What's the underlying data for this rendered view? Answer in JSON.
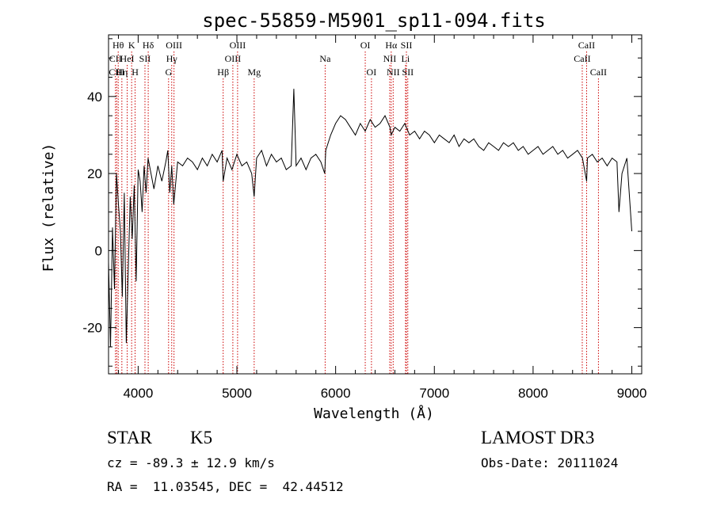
{
  "chart_data": {
    "type": "line",
    "title": "spec-55859-M5901_sp11-094.fits",
    "xlabel": "Wavelength (Å)",
    "ylabel": "Flux (relative)",
    "xlim": [
      3700,
      9100
    ],
    "ylim": [
      -32,
      56
    ],
    "xticks": [
      4000,
      5000,
      6000,
      7000,
      8000,
      9000
    ],
    "xtick_labels": [
      "4000",
      "5000",
      "6000",
      "7000",
      "8000",
      "9000"
    ],
    "yticks": [
      -20,
      0,
      20,
      40
    ],
    "ytick_labels": [
      "-20",
      "0",
      "20",
      "40"
    ],
    "series": [
      {
        "name": "flux",
        "x": [
          3700,
          3720,
          3740,
          3760,
          3780,
          3800,
          3820,
          3840,
          3860,
          3880,
          3900,
          3920,
          3940,
          3960,
          3980,
          4000,
          4020,
          4040,
          4060,
          4080,
          4100,
          4130,
          4160,
          4200,
          4240,
          4280,
          4300,
          4320,
          4340,
          4360,
          4400,
          4450,
          4500,
          4550,
          4600,
          4650,
          4700,
          4750,
          4800,
          4850,
          4861,
          4900,
          4950,
          5000,
          5050,
          5100,
          5150,
          5175,
          5200,
          5250,
          5300,
          5350,
          5400,
          5450,
          5500,
          5550,
          5577,
          5600,
          5650,
          5700,
          5750,
          5800,
          5850,
          5890,
          5900,
          5950,
          6000,
          6050,
          6100,
          6150,
          6200,
          6250,
          6300,
          6350,
          6400,
          6450,
          6500,
          6550,
          6563,
          6600,
          6650,
          6700,
          6750,
          6800,
          6850,
          6900,
          6950,
          7000,
          7050,
          7100,
          7150,
          7200,
          7250,
          7300,
          7350,
          7400,
          7450,
          7500,
          7550,
          7600,
          7650,
          7700,
          7750,
          7800,
          7850,
          7900,
          7950,
          8000,
          8050,
          8100,
          8150,
          8200,
          8250,
          8300,
          8350,
          8400,
          8450,
          8500,
          8542,
          8550,
          8600,
          8650,
          8700,
          8750,
          8800,
          8850,
          8870,
          8900,
          8950,
          9000
        ],
        "values": [
          -3,
          -25,
          6,
          -10,
          20,
          12,
          5,
          -12,
          15,
          -24,
          -5,
          14,
          3,
          17,
          -8,
          21,
          18,
          10,
          22,
          15,
          24,
          20,
          16,
          22,
          18,
          23,
          26,
          15,
          22,
          12,
          23,
          22,
          24,
          23,
          21,
          24,
          22,
          25,
          23,
          26,
          18,
          24,
          21,
          25,
          22,
          23,
          20,
          14,
          24,
          26,
          22,
          25,
          23,
          24,
          21,
          22,
          42,
          22,
          24,
          21,
          24,
          25,
          23,
          20,
          26,
          30,
          33,
          35,
          34,
          32,
          30,
          33,
          31,
          34,
          32,
          33,
          35,
          32,
          30,
          32,
          31,
          33,
          30,
          31,
          29,
          31,
          30,
          28,
          30,
          29,
          28,
          30,
          27,
          29,
          28,
          29,
          27,
          26,
          28,
          27,
          26,
          28,
          27,
          28,
          26,
          27,
          25,
          26,
          27,
          25,
          26,
          27,
          25,
          26,
          24,
          25,
          26,
          24,
          18,
          24,
          25,
          23,
          24,
          22,
          24,
          23,
          10,
          20,
          24,
          5
        ]
      }
    ],
    "line_markers": [
      {
        "label": "Hθ",
        "wavelength": 3798,
        "row": 1
      },
      {
        "label": "CII",
        "wavelength": 3770,
        "row": 2
      },
      {
        "label": "CIII",
        "wavelength": 3783,
        "row": 3
      },
      {
        "label": "K",
        "wavelength": 3934,
        "row": 1
      },
      {
        "label": "HeI",
        "wavelength": 3889,
        "row": 2
      },
      {
        "label": "Hη",
        "wavelength": 3835,
        "row": 3
      },
      {
        "label": "SII",
        "wavelength": 4069,
        "row": 2
      },
      {
        "label": "H",
        "wavelength": 3969,
        "row": 3
      },
      {
        "label": "Hδ",
        "wavelength": 4102,
        "row": 1
      },
      {
        "label": "OIII",
        "wavelength": 4363,
        "row": 1
      },
      {
        "label": "Hγ",
        "wavelength": 4340,
        "row": 2
      },
      {
        "label": "G",
        "wavelength": 4308,
        "row": 3
      },
      {
        "label": "OIII",
        "wavelength": 5007,
        "row": 1
      },
      {
        "label": "OIII",
        "wavelength": 4959,
        "row": 2
      },
      {
        "label": "Hβ",
        "wavelength": 4861,
        "row": 3
      },
      {
        "label": "Mg",
        "wavelength": 5175,
        "row": 3
      },
      {
        "label": "Na",
        "wavelength": 5894,
        "row": 2
      },
      {
        "label": "OI",
        "wavelength": 6300,
        "row": 1
      },
      {
        "label": "OI",
        "wavelength": 6363,
        "row": 3
      },
      {
        "label": "Hα",
        "wavelength": 6563,
        "row": 1
      },
      {
        "label": "NII",
        "wavelength": 6548,
        "row": 2
      },
      {
        "label": "NII",
        "wavelength": 6583,
        "row": 3
      },
      {
        "label": "SII",
        "wavelength": 6717,
        "row": 1
      },
      {
        "label": "Li",
        "wavelength": 6708,
        "row": 2
      },
      {
        "label": "SII",
        "wavelength": 6731,
        "row": 3
      },
      {
        "label": "CaII",
        "wavelength": 8542,
        "row": 1
      },
      {
        "label": "CaII",
        "wavelength": 8498,
        "row": 2
      },
      {
        "label": "CaII",
        "wavelength": 8662,
        "row": 3
      }
    ]
  },
  "info": {
    "class": "STAR",
    "subclass": "K5",
    "survey": "LAMOST DR3",
    "cz": "cz = -89.3 ± 12.9 km/s",
    "obs_date": "Obs-Date: 20111024",
    "coords": "RA =  11.03545, DEC =  42.44512"
  },
  "colors": {
    "axis": "#000000",
    "spectrum": "#000000",
    "markers": "#cc0000"
  }
}
